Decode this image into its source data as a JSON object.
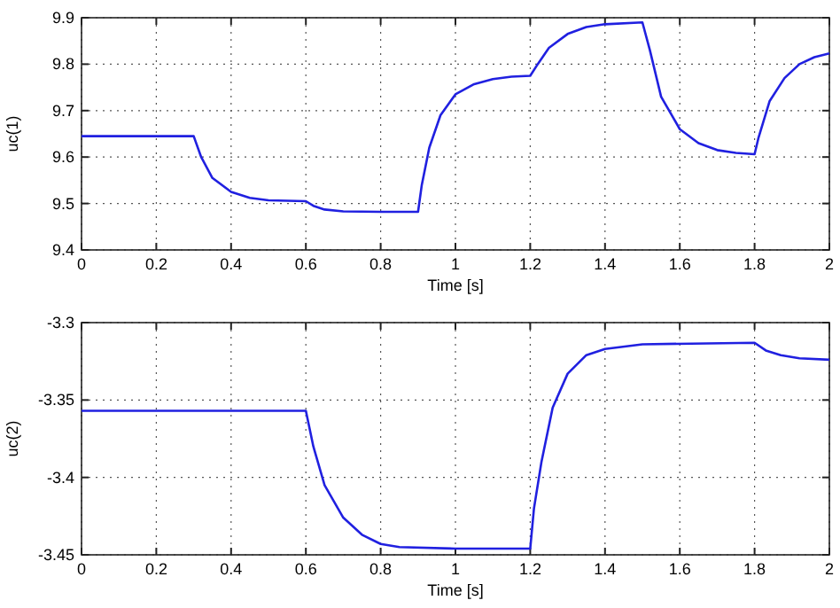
{
  "chart_data": [
    {
      "type": "line",
      "xlabel": "Time [s]",
      "ylabel": "uc(1)",
      "xlim": [
        0,
        2
      ],
      "ylim": [
        9.4,
        9.9
      ],
      "xticks": [
        0,
        0.2,
        0.4,
        0.6,
        0.8,
        1,
        1.2,
        1.4,
        1.6,
        1.8,
        2
      ],
      "yticks": [
        9.4,
        9.5,
        9.6,
        9.7,
        9.8,
        9.9
      ],
      "grid": true,
      "line_style": "solid",
      "series": [
        {
          "color": "#2020e0",
          "x": [
            0,
            0.3,
            0.32,
            0.35,
            0.4,
            0.45,
            0.5,
            0.6,
            0.62,
            0.65,
            0.7,
            0.8,
            0.9,
            0.91,
            0.93,
            0.96,
            1.0,
            1.05,
            1.1,
            1.15,
            1.2,
            1.22,
            1.25,
            1.3,
            1.35,
            1.4,
            1.5,
            1.52,
            1.55,
            1.6,
            1.65,
            1.7,
            1.75,
            1.8,
            1.81,
            1.84,
            1.88,
            1.92,
            1.96,
            2.0
          ],
          "values": [
            9.645,
            9.645,
            9.6,
            9.555,
            9.525,
            9.512,
            9.507,
            9.505,
            9.495,
            9.487,
            9.483,
            9.482,
            9.482,
            9.54,
            9.62,
            9.69,
            9.735,
            9.757,
            9.768,
            9.773,
            9.775,
            9.8,
            9.835,
            9.865,
            9.88,
            9.886,
            9.89,
            9.83,
            9.73,
            9.66,
            9.63,
            9.615,
            9.609,
            9.606,
            9.64,
            9.72,
            9.77,
            9.8,
            9.815,
            9.823
          ]
        }
      ]
    },
    {
      "type": "line",
      "xlabel": "Time [s]",
      "ylabel": "uc(2)",
      "xlim": [
        0,
        2
      ],
      "ylim": [
        -3.45,
        -3.3
      ],
      "xticks": [
        0,
        0.2,
        0.4,
        0.6,
        0.8,
        1,
        1.2,
        1.4,
        1.6,
        1.8,
        2
      ],
      "yticks": [
        -3.45,
        -3.4,
        -3.35,
        -3.3
      ],
      "grid": true,
      "line_style": "solid",
      "series": [
        {
          "color": "#2020e0",
          "x": [
            0,
            0.6,
            0.62,
            0.65,
            0.7,
            0.75,
            0.8,
            0.85,
            1.0,
            1.2,
            1.21,
            1.23,
            1.26,
            1.3,
            1.35,
            1.4,
            1.5,
            1.8,
            1.83,
            1.87,
            1.92,
            2.0
          ],
          "values": [
            -3.357,
            -3.357,
            -3.38,
            -3.405,
            -3.426,
            -3.437,
            -3.443,
            -3.445,
            -3.446,
            -3.446,
            -3.42,
            -3.39,
            -3.355,
            -3.333,
            -3.321,
            -3.317,
            -3.314,
            -3.313,
            -3.318,
            -3.321,
            -3.323,
            -3.324
          ]
        }
      ]
    }
  ]
}
